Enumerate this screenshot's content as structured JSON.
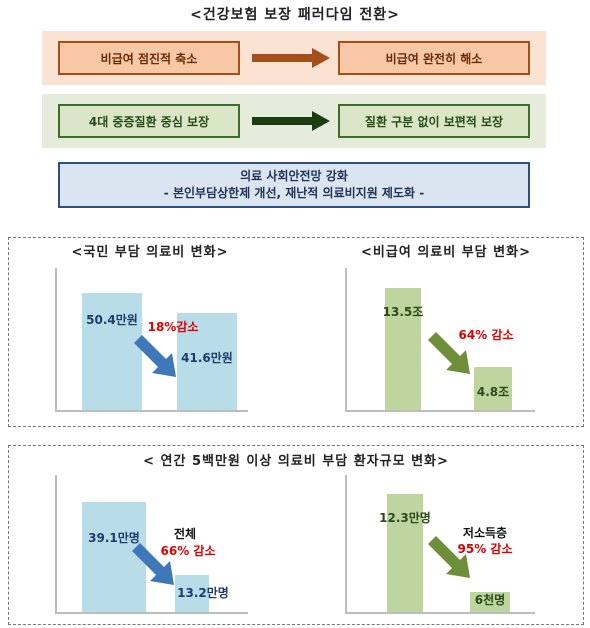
{
  "title": "<건강보험 보장 패러다임 전환>",
  "paradigm": {
    "row1": {
      "from": "비급여 점진적 축소",
      "to": "비급여 완전히 해소"
    },
    "row2": {
      "from": "4대 중증질환 중심 보장",
      "to": "질환 구분 없이 보편적 보장"
    },
    "safety": {
      "line1": "의료 사회안전망 강화",
      "line2": "- 본인부담상한제 개선, 재난적 의료비지원 제도화 -"
    }
  },
  "colors": {
    "orange_arrow": "#a44e1b",
    "green_arrow": "#1c3d12",
    "blue_bar": "#b8dce8",
    "green_bar": "#bdd6a0",
    "blue_arrow": "#3f78b8",
    "olive_arrow": "#6e8f3a",
    "red_text": "#e10000"
  },
  "panel_top": {
    "left": {
      "title": "<국민 부담 의료비 변화>"
    },
    "right": {
      "title": "<비급여 의료비 부담 변화>"
    }
  },
  "panel_bottom": {
    "title": "< 연간 5백만원 이상 의료비 부담 환자규모 변화>"
  },
  "chart_data": [
    {
      "type": "bar",
      "title": "<국민 부담 의료비 변화>",
      "categories": [
        "",
        ""
      ],
      "values": [
        50.4,
        41.6
      ],
      "value_labels": [
        "50.4만원",
        "41.6만원"
      ],
      "annotation": "18%감소"
    },
    {
      "type": "bar",
      "title": "<비급여 의료비 부담 변화>",
      "categories": [
        "",
        ""
      ],
      "values": [
        13.5,
        4.8
      ],
      "value_labels": [
        "13.5조",
        "4.8조"
      ],
      "annotation": "64% 감소"
    },
    {
      "type": "bar",
      "title": "< 연간 5백만원 이상 의료비 부담 환자규모 변화>",
      "categories": [
        "",
        ""
      ],
      "values": [
        39.1,
        13.2
      ],
      "value_labels": [
        "39.1만명",
        "13.2만명"
      ],
      "group_label": "전체",
      "annotation": "66% 감소"
    },
    {
      "type": "bar",
      "categories": [
        "",
        ""
      ],
      "values": [
        12.3,
        0.6
      ],
      "value_labels": [
        "12.3만명",
        "6천명"
      ],
      "group_label": "저소득층",
      "annotation": "95% 감소"
    }
  ]
}
